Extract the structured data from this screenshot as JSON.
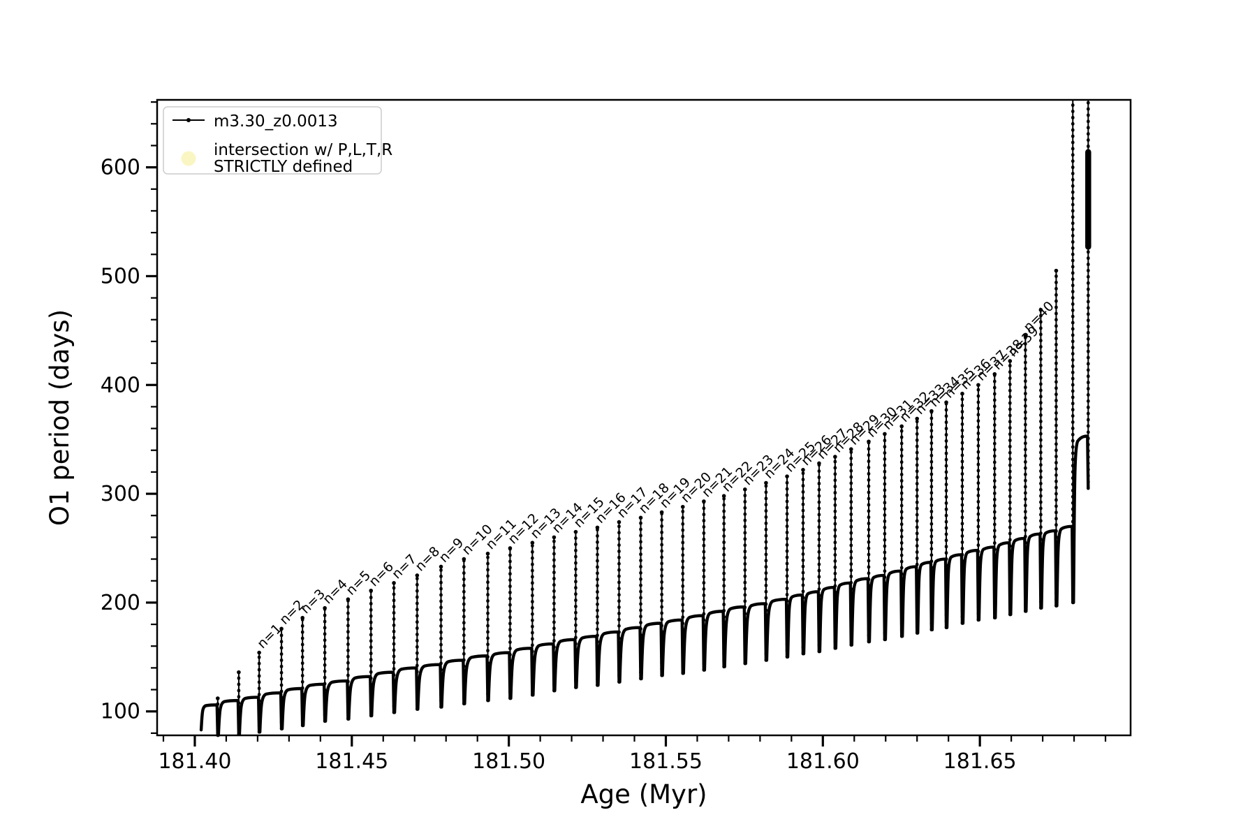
{
  "figure": {
    "xlabel": "Age (Myr)",
    "ylabel": "O1 period (days)"
  },
  "legend": {
    "series1_label": "m3.30_z0.0013",
    "series2_label_line1": "intersection w/ P,L,T,R",
    "series2_label_line2": "STRICTLY defined",
    "series1_color": "#000000",
    "series2_color": "#faf6c3"
  },
  "axes": {
    "x_major_tick_labels": [
      "181.40",
      "181.45",
      "181.50",
      "181.55",
      "181.60",
      "181.65"
    ],
    "x_major_tick_values": [
      181.4,
      181.45,
      181.5,
      181.55,
      181.6,
      181.65
    ],
    "y_major_tick_labels": [
      "100",
      "200",
      "300",
      "400",
      "500",
      "600"
    ],
    "y_major_tick_values": [
      100,
      200,
      300,
      400,
      500,
      600
    ],
    "x_minor_step": 0.01,
    "y_minor_step": 20
  },
  "chart_data": {
    "type": "line",
    "title": "",
    "xlabel": "Age (Myr)",
    "ylabel": "O1 period (days)",
    "xlim": [
      181.388,
      181.698
    ],
    "ylim": [
      78,
      662
    ],
    "grid": false,
    "legend_position": "upper left",
    "series_label": "m3.30_z0.0013",
    "line_color": "#000000",
    "description": "Sawtooth orbital-period track vs age: rising humped baseline cut by narrow dips, with a tall narrow spike at each dip; spikes n=1..40 annotated at their peaks; the last two spikes are clipped at the top axis; baseline sweeps up to ~353 days at the right end.",
    "start": {
      "age": 181.4018,
      "dip": 83
    },
    "final_blob": {
      "age": 181.6845,
      "period_range": [
        527,
        614
      ]
    },
    "spikes": [
      {
        "age": 181.4073,
        "peak": 112,
        "base": 106,
        "dip": 78,
        "label": null
      },
      {
        "age": 181.414,
        "peak": 136,
        "base": 110,
        "dip": 79,
        "label": null
      },
      {
        "age": 181.4205,
        "peak": 154,
        "base": 113,
        "dip": 81,
        "label": "n=1"
      },
      {
        "age": 181.4276,
        "peak": 176,
        "base": 117,
        "dip": 84,
        "label": "n=2"
      },
      {
        "age": 181.4343,
        "peak": 186,
        "base": 121,
        "dip": 87,
        "label": "n=3"
      },
      {
        "age": 181.4414,
        "peak": 195,
        "base": 125,
        "dip": 91,
        "label": "n=4"
      },
      {
        "age": 181.4488,
        "peak": 203,
        "base": 128,
        "dip": 93,
        "label": "n=5"
      },
      {
        "age": 181.4561,
        "peak": 211,
        "base": 132,
        "dip": 96,
        "label": "n=6"
      },
      {
        "age": 181.4634,
        "peak": 218,
        "base": 136,
        "dip": 99,
        "label": "n=7"
      },
      {
        "age": 181.4708,
        "peak": 225,
        "base": 140,
        "dip": 102,
        "label": "n=8"
      },
      {
        "age": 181.4784,
        "peak": 233,
        "base": 143,
        "dip": 104,
        "label": "n=9"
      },
      {
        "age": 181.4857,
        "peak": 240,
        "base": 147,
        "dip": 107,
        "label": "n=10"
      },
      {
        "age": 181.4933,
        "peak": 245,
        "base": 151,
        "dip": 110,
        "label": "n=11"
      },
      {
        "age": 181.5004,
        "peak": 250,
        "base": 154,
        "dip": 112,
        "label": "n=12"
      },
      {
        "age": 181.5075,
        "peak": 255,
        "base": 158,
        "dip": 115,
        "label": "n=13"
      },
      {
        "age": 181.5144,
        "peak": 260,
        "base": 162,
        "dip": 119,
        "label": "n=14"
      },
      {
        "age": 181.5213,
        "peak": 265,
        "base": 166,
        "dip": 122,
        "label": "n=15"
      },
      {
        "age": 181.5282,
        "peak": 269,
        "base": 169,
        "dip": 124,
        "label": "n=16"
      },
      {
        "age": 181.5351,
        "peak": 274,
        "base": 173,
        "dip": 127,
        "label": "n=17"
      },
      {
        "age": 181.542,
        "peak": 278,
        "base": 177,
        "dip": 130,
        "label": "n=18"
      },
      {
        "age": 181.5487,
        "peak": 283,
        "base": 181,
        "dip": 133,
        "label": "n=19"
      },
      {
        "age": 181.5554,
        "peak": 288,
        "base": 184,
        "dip": 135,
        "label": "n=20"
      },
      {
        "age": 181.5621,
        "peak": 293,
        "base": 188,
        "dip": 138,
        "label": "n=21"
      },
      {
        "age": 181.5685,
        "peak": 298,
        "base": 192,
        "dip": 141,
        "label": "n=22"
      },
      {
        "age": 181.5752,
        "peak": 304,
        "base": 196,
        "dip": 144,
        "label": "n=23"
      },
      {
        "age": 181.5819,
        "peak": 310,
        "base": 199,
        "dip": 147,
        "label": "n=24"
      },
      {
        "age": 181.5886,
        "peak": 316,
        "base": 203,
        "dip": 150,
        "label": "n=25"
      },
      {
        "age": 181.5937,
        "peak": 322,
        "base": 207,
        "dip": 153,
        "label": "n=26"
      },
      {
        "age": 181.5988,
        "peak": 328,
        "base": 210,
        "dip": 155,
        "label": "n=27"
      },
      {
        "age": 181.6039,
        "peak": 334,
        "base": 214,
        "dip": 158,
        "label": "n=28"
      },
      {
        "age": 181.609,
        "peak": 341,
        "base": 218,
        "dip": 161,
        "label": "n=29"
      },
      {
        "age": 181.6146,
        "peak": 348,
        "base": 222,
        "dip": 164,
        "label": "n=30"
      },
      {
        "age": 181.6197,
        "peak": 355,
        "base": 225,
        "dip": 166,
        "label": "n=31"
      },
      {
        "age": 181.6251,
        "peak": 362,
        "base": 229,
        "dip": 169,
        "label": "n=32"
      },
      {
        "age": 181.63,
        "peak": 369,
        "base": 233,
        "dip": 172,
        "label": "n=33"
      },
      {
        "age": 181.6346,
        "peak": 376,
        "base": 237,
        "dip": 175,
        "label": "n=34"
      },
      {
        "age": 181.6393,
        "peak": 384,
        "base": 240,
        "dip": 177,
        "label": "n=35"
      },
      {
        "age": 181.6444,
        "peak": 392,
        "base": 244,
        "dip": 181,
        "label": "n=36"
      },
      {
        "age": 181.6495,
        "peak": 400,
        "base": 248,
        "dip": 184,
        "label": "n=37"
      },
      {
        "age": 181.6547,
        "peak": 410,
        "base": 251,
        "dip": 186,
        "label": "n=38"
      },
      {
        "age": 181.6596,
        "peak": 422,
        "base": 255,
        "dip": 189,
        "label": "n=39"
      },
      {
        "age": 181.6645,
        "peak": 445,
        "base": 259,
        "dip": 192,
        "label": "n=40"
      },
      {
        "age": 181.6694,
        "peak": 469,
        "base": 263,
        "dip": 195,
        "label": null
      },
      {
        "age": 181.6743,
        "peak": 505,
        "base": 266,
        "dip": 197,
        "label": null
      },
      {
        "age": 181.6796,
        "peak": null,
        "base": 270,
        "dip": 200,
        "label": null
      },
      {
        "age": 181.6845,
        "peak": null,
        "base": 353,
        "dip": 305,
        "label": null
      }
    ]
  }
}
